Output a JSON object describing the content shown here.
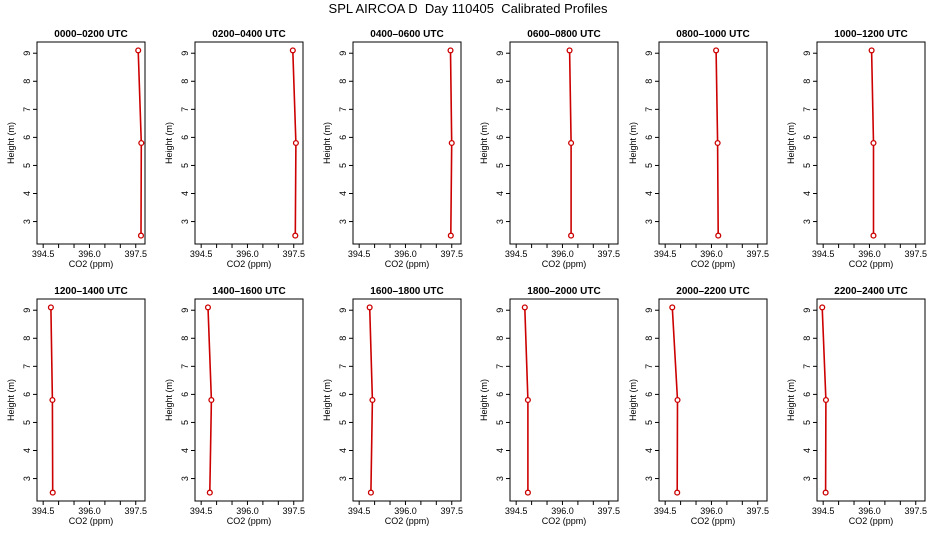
{
  "title": "SPL AIRCOA D  Day 110405  Calibrated Profiles",
  "chart_data": {
    "type": "line",
    "xlabel": "CO2 (ppm)",
    "ylabel": "Height (m)",
    "xlim": [
      394.3,
      397.8
    ],
    "ylim": [
      2.2,
      9.4
    ],
    "xticks": [
      394.5,
      395.0,
      395.5,
      396.0,
      396.5,
      397.0,
      397.5
    ],
    "xtick_labels": [
      "394.5",
      "",
      "",
      "396.0",
      "",
      "",
      "397.5"
    ],
    "yticks": [
      3,
      4,
      5,
      6,
      7,
      8,
      9
    ],
    "ytick_labels": [
      "3",
      "4",
      "5",
      "6",
      "7",
      "8",
      "9"
    ],
    "heights": [
      9.1,
      5.8,
      2.5
    ],
    "line_color": "#cc0000",
    "panels": [
      {
        "title": "0000–0200 UTC",
        "x": [
          397.58,
          397.68,
          397.67
        ]
      },
      {
        "title": "0200–0400 UTC",
        "x": [
          397.47,
          397.57,
          397.55
        ]
      },
      {
        "title": "0400–0600 UTC",
        "x": [
          397.46,
          397.5,
          397.47
        ]
      },
      {
        "title": "0600–0800 UTC",
        "x": [
          396.23,
          396.28,
          396.28
        ]
      },
      {
        "title": "0800–1000 UTC",
        "x": [
          396.15,
          396.2,
          396.22
        ]
      },
      {
        "title": "1000–1200 UTC",
        "x": [
          396.07,
          396.13,
          396.13
        ]
      },
      {
        "title": "1200–1400 UTC",
        "x": [
          394.75,
          394.8,
          394.81
        ]
      },
      {
        "title": "1400–1600 UTC",
        "x": [
          394.72,
          394.83,
          394.78
        ]
      },
      {
        "title": "1600–1800 UTC",
        "x": [
          394.84,
          394.93,
          394.88
        ]
      },
      {
        "title": "1800–2000 UTC",
        "x": [
          394.78,
          394.88,
          394.88
        ]
      },
      {
        "title": "2000–2200 UTC",
        "x": [
          394.73,
          394.9,
          394.89
        ]
      },
      {
        "title": "2200–2400 UTC",
        "x": [
          394.47,
          394.59,
          394.58
        ]
      }
    ]
  }
}
